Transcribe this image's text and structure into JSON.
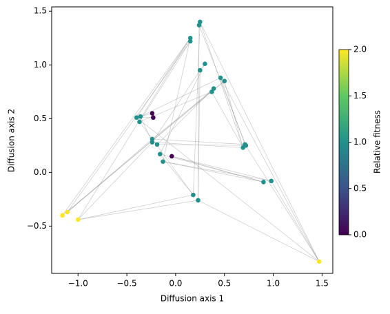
{
  "chart_data": {
    "type": "scatter",
    "xlabel": "Diffusion axis 1",
    "ylabel": "Diffusion axis 2",
    "x": [
      -1.16,
      -1.11,
      -1.0,
      1.47,
      -0.24,
      -0.23,
      -0.04,
      0.25,
      0.24,
      0.15,
      0.15,
      0.3,
      0.25,
      0.46,
      0.5,
      0.39,
      0.37,
      -0.4,
      -0.36,
      -0.37,
      -0.24,
      -0.24,
      -0.19,
      -0.16,
      -0.13,
      0.71,
      0.69,
      0.72,
      0.9,
      0.98,
      0.18,
      0.23
    ],
    "y": [
      -0.4,
      -0.37,
      -0.44,
      -0.83,
      0.55,
      0.51,
      0.15,
      1.4,
      1.37,
      1.25,
      1.22,
      1.01,
      0.95,
      0.88,
      0.85,
      0.78,
      0.75,
      0.51,
      0.52,
      0.47,
      0.31,
      0.28,
      0.26,
      0.17,
      0.1,
      0.26,
      0.23,
      0.25,
      -0.09,
      -0.08,
      -0.21,
      -0.26
    ],
    "fitness": [
      2,
      2,
      2,
      2,
      0,
      0,
      0,
      1,
      1,
      1,
      1,
      1,
      1,
      1,
      1,
      1,
      1,
      1,
      1,
      1,
      1,
      1,
      1,
      1,
      1,
      1,
      1,
      1,
      1,
      1,
      1,
      1
    ],
    "edges": [
      [
        0,
        9
      ],
      [
        1,
        10
      ],
      [
        2,
        9
      ],
      [
        0,
        14
      ],
      [
        1,
        15
      ],
      [
        2,
        30
      ],
      [
        2,
        31
      ],
      [
        2,
        21
      ],
      [
        1,
        20
      ],
      [
        3,
        7
      ],
      [
        3,
        25
      ],
      [
        3,
        29
      ],
      [
        3,
        31
      ],
      [
        3,
        13
      ],
      [
        3,
        17
      ],
      [
        7,
        26
      ],
      [
        8,
        27
      ],
      [
        9,
        17
      ],
      [
        10,
        19
      ],
      [
        9,
        24
      ],
      [
        11,
        12
      ],
      [
        12,
        21
      ],
      [
        12,
        31
      ],
      [
        13,
        18
      ],
      [
        14,
        20
      ],
      [
        15,
        22
      ],
      [
        16,
        19
      ],
      [
        7,
        30
      ],
      [
        8,
        31
      ],
      [
        20,
        25
      ],
      [
        21,
        26
      ],
      [
        22,
        27
      ],
      [
        23,
        28
      ],
      [
        24,
        29
      ],
      [
        23,
        30
      ],
      [
        4,
        18
      ],
      [
        5,
        17
      ],
      [
        6,
        29
      ],
      [
        6,
        28
      ],
      [
        13,
        25
      ],
      [
        14,
        26
      ],
      [
        17,
        20
      ],
      [
        18,
        21
      ],
      [
        16,
        26
      ],
      [
        11,
        23
      ],
      [
        30,
        20
      ],
      [
        28,
        24
      ]
    ],
    "colormap": "viridis",
    "xlim": [
      -1.27,
      1.61
    ],
    "ylim": [
      -0.94,
      1.54
    ],
    "xticks": [
      {
        "value": -1.0,
        "label": "−1.0"
      },
      {
        "value": -0.5,
        "label": "−0.5"
      },
      {
        "value": 0.0,
        "label": "0.0"
      },
      {
        "value": 0.5,
        "label": "0.5"
      },
      {
        "value": 1.0,
        "label": "1.0"
      },
      {
        "value": 1.5,
        "label": "1.5"
      }
    ],
    "yticks": [
      {
        "value": -0.5,
        "label": "−0.5"
      },
      {
        "value": 0.0,
        "label": "0.0"
      },
      {
        "value": 0.5,
        "label": "0.5"
      },
      {
        "value": 1.0,
        "label": "1.0"
      },
      {
        "value": 1.5,
        "label": "1.5"
      }
    ],
    "colorbar": {
      "label": "Relative fitness",
      "lim": [
        0,
        2
      ],
      "ticks": [
        {
          "value": 0.0,
          "label": "0.0"
        },
        {
          "value": 0.5,
          "label": "0.5"
        },
        {
          "value": 1.0,
          "label": "1.0"
        },
        {
          "value": 1.5,
          "label": "1.5"
        },
        {
          "value": 2.0,
          "label": "2.0"
        }
      ]
    }
  }
}
